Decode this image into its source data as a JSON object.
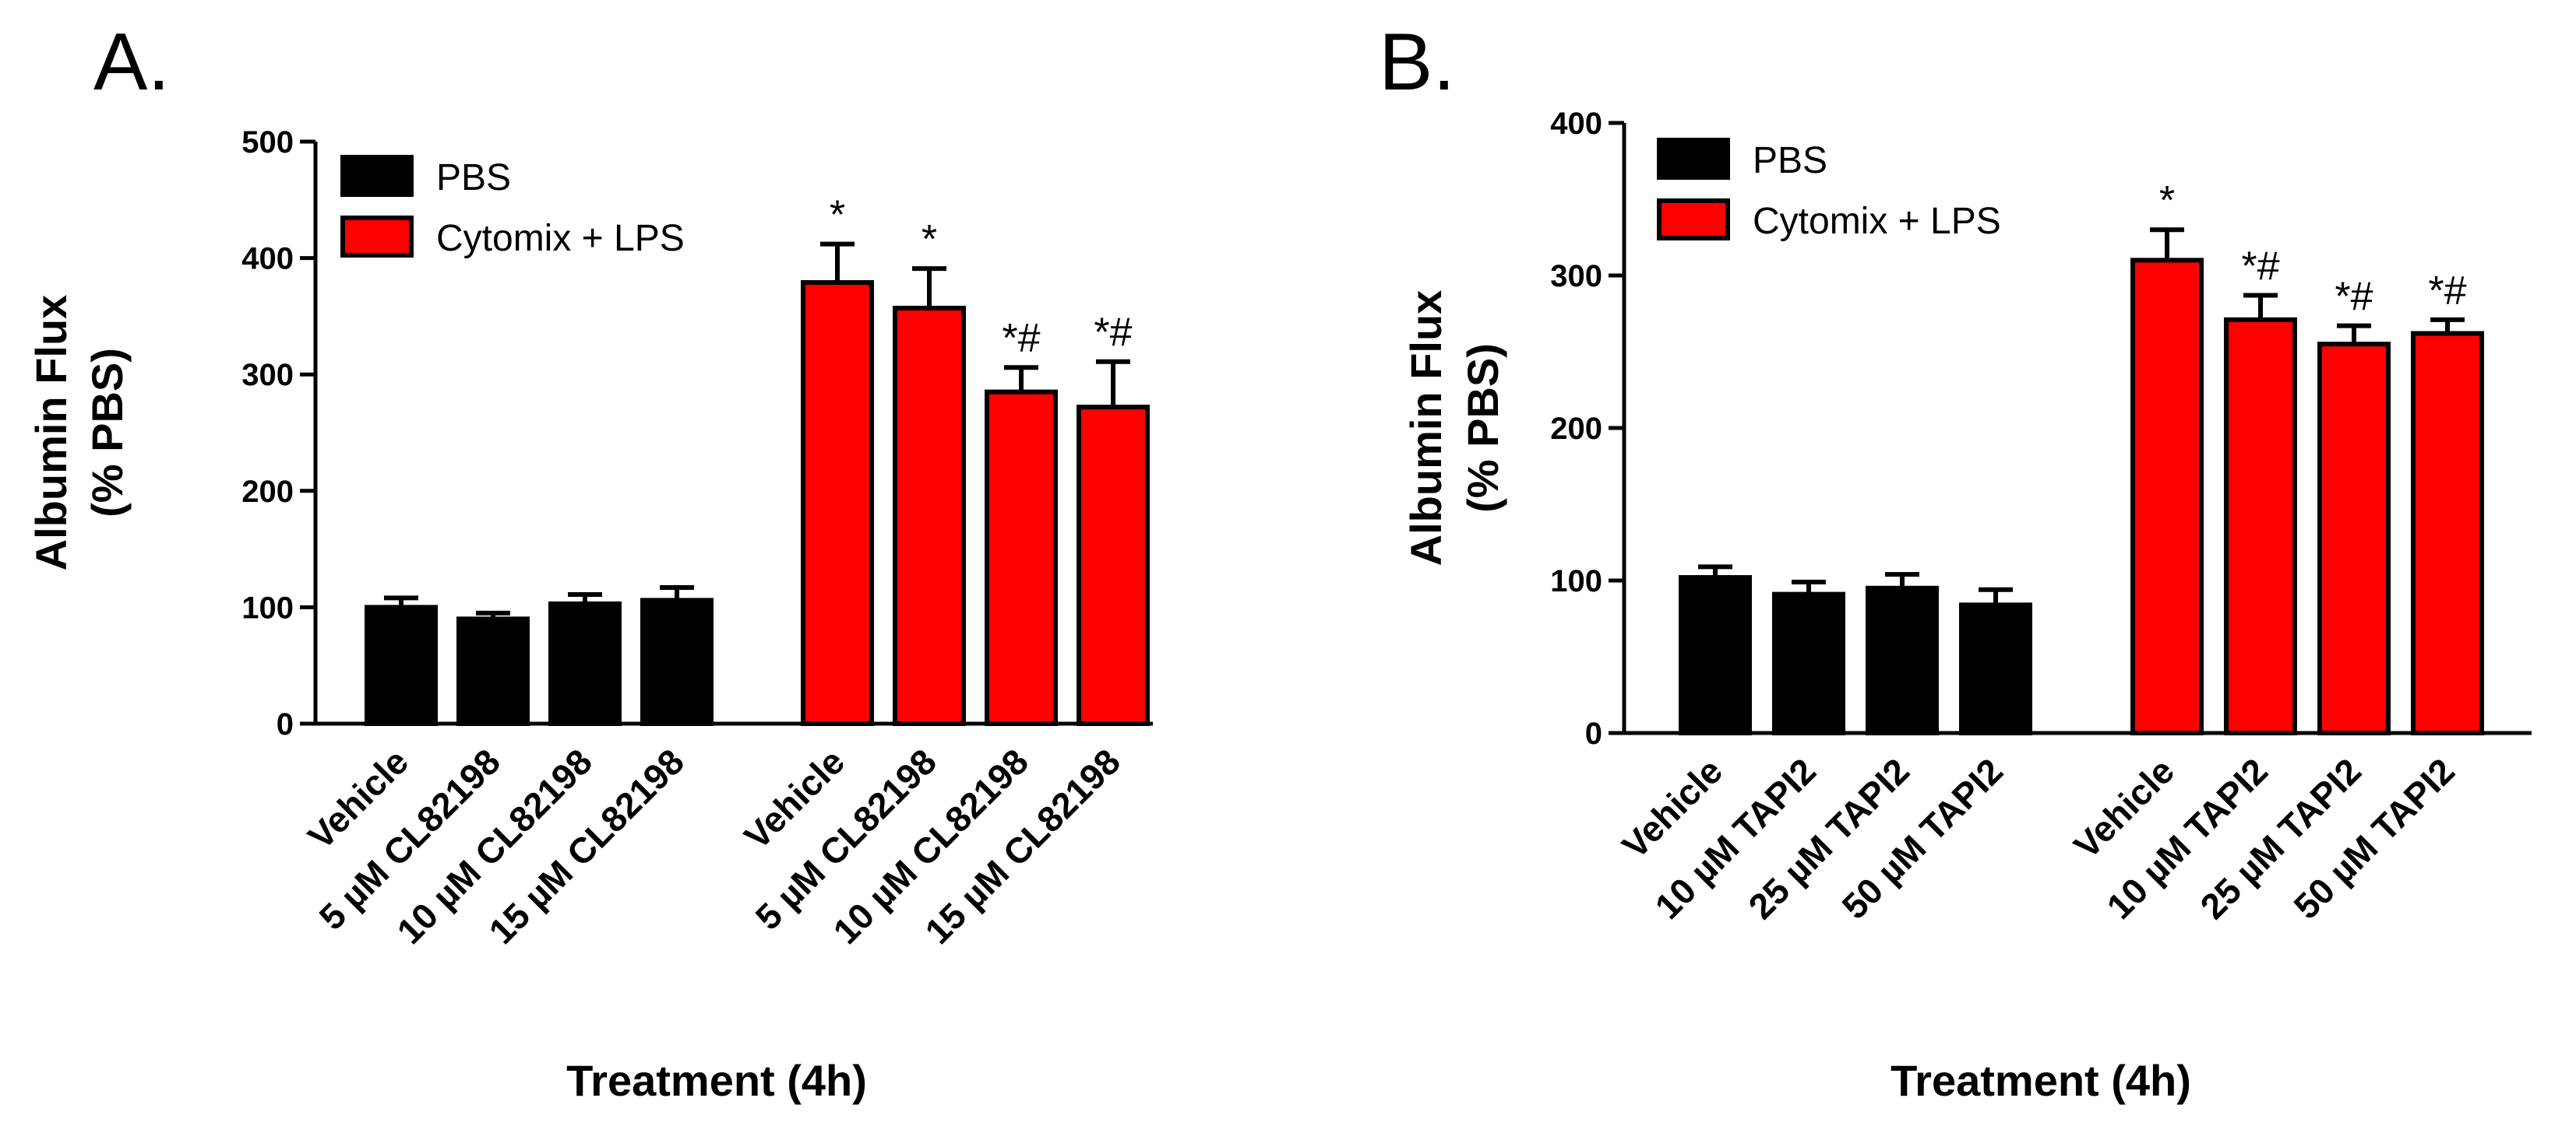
{
  "chart_data": [
    {
      "type": "bar",
      "panel_label": "A.",
      "xlabel": "Treatment (4h)",
      "ylabel_line1": "Albumin Flux",
      "ylabel_line2": "(% PBS)",
      "ylim": [
        0,
        500
      ],
      "yticks": [
        0,
        100,
        200,
        300,
        400,
        500
      ],
      "legend": [
        {
          "name": "PBS",
          "color": "#000000"
        },
        {
          "name": "Cytomix + LPS",
          "color": "#ff0000"
        }
      ],
      "groups": [
        {
          "name": "PBS",
          "color": "#000000",
          "categories": [
            "Vehicle",
            "5 µM CL82198",
            "10 µM CL82198",
            "15 µM CL82198"
          ],
          "values": [
            100,
            90,
            103,
            106
          ],
          "errors": [
            8,
            5,
            8,
            11
          ],
          "annotations": [
            "",
            "",
            "",
            ""
          ]
        },
        {
          "name": "Cytomix + LPS",
          "color": "#ff0000",
          "categories": [
            "Vehicle",
            "5 µM CL82198",
            "10 µM CL82198",
            "15 µM CL82198"
          ],
          "values": [
            379,
            357,
            285,
            272
          ],
          "errors": [
            33,
            34,
            21,
            39
          ],
          "annotations": [
            "*",
            "*",
            "*#",
            "*#"
          ]
        }
      ]
    },
    {
      "type": "bar",
      "panel_label": "B.",
      "xlabel": "Treatment (4h)",
      "ylabel_line1": "Albumin Flux",
      "ylabel_line2": "(% PBS)",
      "ylim": [
        0,
        400
      ],
      "yticks": [
        0,
        100,
        200,
        300,
        400
      ],
      "legend": [
        {
          "name": "PBS",
          "color": "#000000"
        },
        {
          "name": "Cytomix + LPS",
          "color": "#ff0000"
        }
      ],
      "groups": [
        {
          "name": "PBS",
          "color": "#000000",
          "categories": [
            "Vehicle",
            "10 µM TAPI2",
            "25 µM TAPI2",
            "50 µM TAPI2"
          ],
          "values": [
            102,
            91,
            95,
            84
          ],
          "errors": [
            7,
            8,
            9,
            10
          ],
          "annotations": [
            "",
            "",
            "",
            ""
          ]
        },
        {
          "name": "Cytomix + LPS",
          "color": "#ff0000",
          "categories": [
            "Vehicle",
            "10 µM TAPI2",
            "25 µM TAPI2",
            "50 µM TAPI2"
          ],
          "values": [
            310,
            271,
            255,
            262
          ],
          "errors": [
            20,
            16,
            12,
            9
          ],
          "annotations": [
            "*",
            "*#",
            "*#",
            "*#"
          ]
        }
      ]
    }
  ]
}
